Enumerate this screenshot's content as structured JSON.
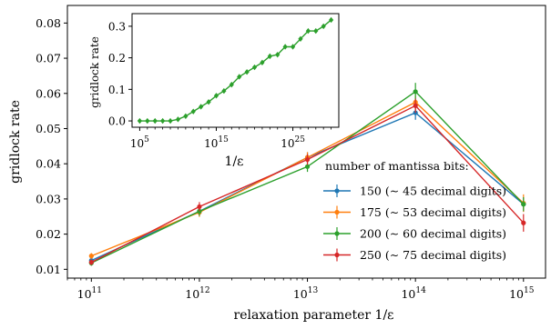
{
  "chart_data": [
    {
      "type": "line",
      "xscale": "log",
      "xlabel": "relaxation parameter 1/ε",
      "ylabel": "gridlock rate",
      "xlim": [
        60000000000,
        1600000000000000
      ],
      "ylim": [
        0.0075,
        0.085
      ],
      "xticks": [
        100000000000,
        1000000000000,
        10000000000000,
        100000000000000,
        1000000000000000
      ],
      "xtick_labels": [
        "10",
        "10",
        "10",
        "10",
        "10"
      ],
      "xtick_exponents": [
        "11",
        "12",
        "13",
        "14",
        "15"
      ],
      "yticks": [
        0.01,
        0.02,
        0.03,
        0.04,
        0.05,
        0.06,
        0.07,
        0.08
      ],
      "ytick_labels": [
        "0.01",
        "0.02",
        "0.03",
        "0.04",
        "0.05",
        "0.06",
        "0.07",
        "0.08"
      ],
      "grid": false,
      "legend_title": "number of mantissa bits:",
      "legend_position": "lower-right",
      "x": [
        100000000000,
        1000000000000,
        10000000000000,
        100000000000000,
        1000000000000000
      ],
      "series": [
        {
          "name": "150 (∼ 45 decimal digits)",
          "color": "#1f77b4",
          "values": [
            0.0125,
            0.0265,
            0.0418,
            0.0545,
            0.0285
          ],
          "errors": [
            0.0008,
            0.0013,
            0.0015,
            0.002,
            0.002
          ]
        },
        {
          "name": "175 (∼ 53 decimal digits)",
          "color": "#ff7f0e",
          "values": [
            0.0138,
            0.0262,
            0.0418,
            0.0575,
            0.0288
          ],
          "errors": [
            0.0008,
            0.0013,
            0.0015,
            0.002,
            0.0025
          ]
        },
        {
          "name": "200 (∼ 60 decimal digits)",
          "color": "#2ca02c",
          "values": [
            0.0118,
            0.0265,
            0.0392,
            0.0605,
            0.0285
          ],
          "errors": [
            0.0008,
            0.0013,
            0.0015,
            0.0025,
            0.002
          ]
        },
        {
          "name": "250 (∼ 75 decimal digits)",
          "color": "#d62728",
          "values": [
            0.012,
            0.0278,
            0.0412,
            0.0565,
            0.0232
          ],
          "errors": [
            0.0008,
            0.0013,
            0.0015,
            0.002,
            0.0025
          ]
        }
      ]
    },
    {
      "type": "line",
      "xscale": "log",
      "xlabel": "1/ε",
      "ylabel": "gridlock rate",
      "xlim": [
        10000,
        10000000000000000000000000000000
      ],
      "ylim": [
        -0.02,
        0.34
      ],
      "xticks": [
        100000,
        1000000000000000,
        10000000000000000000000000
      ],
      "xtick_labels": [
        "10",
        "10",
        "10"
      ],
      "xtick_exponents": [
        "5",
        "15",
        "25"
      ],
      "yticks": [
        0.0,
        0.1,
        0.2,
        0.3
      ],
      "ytick_labels": [
        "0.0",
        "0.1",
        "0.2",
        "0.3"
      ],
      "series": [
        {
          "name": "",
          "color": "#2ca02c",
          "log10_x": [
            5,
            6,
            7,
            8,
            9,
            10,
            11,
            12,
            13,
            14,
            15,
            16,
            17,
            18,
            19,
            20,
            21,
            22,
            23,
            24,
            25,
            26,
            27,
            28,
            29,
            30
          ],
          "values": [
            0.0,
            0.0,
            0.0,
            0.0,
            0.0,
            0.005,
            0.015,
            0.03,
            0.045,
            0.06,
            0.08,
            0.095,
            0.115,
            0.14,
            0.155,
            0.17,
            0.185,
            0.205,
            0.21,
            0.235,
            0.235,
            0.26,
            0.285,
            0.285,
            0.3,
            0.32
          ]
        }
      ]
    }
  ]
}
